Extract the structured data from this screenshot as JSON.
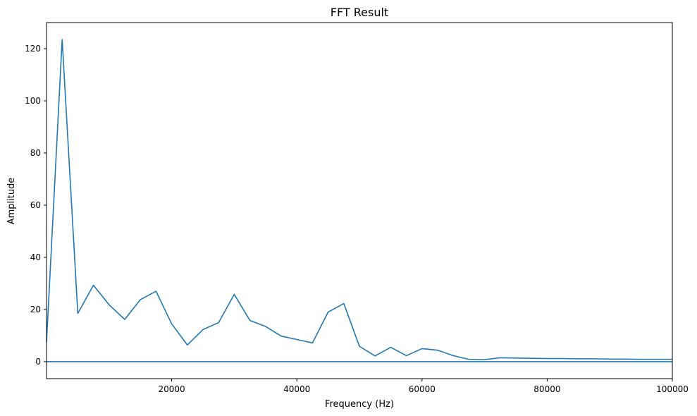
{
  "chart_data": {
    "type": "line",
    "title": "FFT Result",
    "xlabel": "Frequency (Hz)",
    "ylabel": "Amplitude",
    "xlim": [
      0,
      100000
    ],
    "ylim": [
      -6.5,
      130
    ],
    "x_ticks": [
      20000,
      40000,
      60000,
      80000,
      100000
    ],
    "x_tick_labels": [
      "20000",
      "40000",
      "60000",
      "80000",
      "100000"
    ],
    "y_ticks": [
      0,
      20,
      40,
      60,
      80,
      100,
      120
    ],
    "y_tick_labels": [
      "0",
      "20",
      "40",
      "60",
      "80",
      "100",
      "120"
    ],
    "grid": false,
    "line_color": "#1f77b4",
    "series": [
      {
        "x": [
          0,
          2500,
          5000,
          7500,
          10000,
          12500,
          15000,
          17500,
          20000,
          22500,
          25000,
          27500,
          30000,
          32500,
          35000,
          37500,
          40000,
          42500,
          45000,
          47500,
          50000,
          52500,
          55000,
          57500,
          60000,
          62500,
          65000,
          67500,
          70000,
          72500,
          75000,
          77500,
          80000,
          82500,
          85000,
          87500,
          90000,
          92500,
          95000,
          97500,
          100000
        ],
        "values": [
          7.5,
          123.5,
          18.5,
          29.3,
          21.8,
          16.2,
          23.8,
          27.0,
          14.5,
          6.4,
          12.3,
          15.0,
          25.8,
          15.8,
          13.5,
          9.8,
          8.5,
          7.2,
          19.0,
          22.3,
          5.9,
          2.2,
          5.5,
          2.3,
          5.0,
          4.4,
          2.3,
          0.9,
          0.8,
          1.5,
          1.4,
          1.3,
          1.2,
          1.2,
          1.1,
          1.1,
          1.0,
          1.0,
          0.9,
          0.9,
          0.9
        ]
      },
      {
        "x": [
          0,
          100000
        ],
        "values": [
          0,
          0
        ]
      }
    ]
  }
}
